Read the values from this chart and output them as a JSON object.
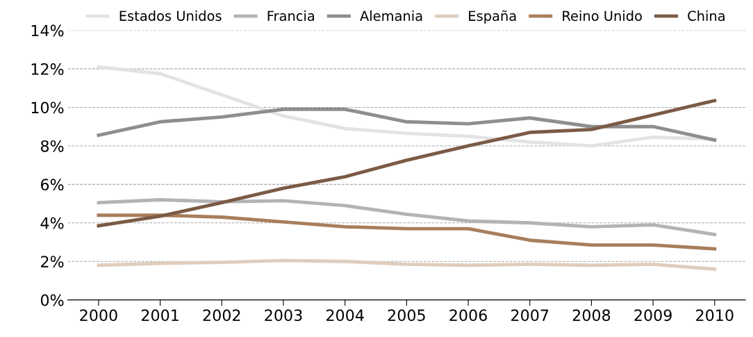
{
  "chart_data": {
    "type": "line",
    "categories": [
      "2000",
      "2001",
      "2002",
      "2003",
      "2004",
      "2005",
      "2006",
      "2007",
      "2008",
      "2009",
      "2010"
    ],
    "series": [
      {
        "name": "Estados Unidos",
        "color": "#e3e3e3",
        "values": [
          12.1,
          11.75,
          10.65,
          9.55,
          8.9,
          8.65,
          8.5,
          8.2,
          8.0,
          8.45,
          8.35
        ]
      },
      {
        "name": "Francia",
        "color": "#b3b3b3",
        "values": [
          5.05,
          5.2,
          5.1,
          5.15,
          4.9,
          4.45,
          4.1,
          4.0,
          3.8,
          3.9,
          3.4
        ]
      },
      {
        "name": "Alemania",
        "color": "#8e8e8e",
        "values": [
          8.55,
          9.25,
          9.5,
          9.9,
          9.9,
          9.25,
          9.15,
          9.45,
          9.0,
          9.0,
          8.3
        ]
      },
      {
        "name": "España",
        "color": "#dfcdbd",
        "values": [
          1.8,
          1.9,
          1.95,
          2.05,
          2.0,
          1.85,
          1.8,
          1.85,
          1.8,
          1.85,
          1.6
        ]
      },
      {
        "name": "Reino Unido",
        "color": "#a87e5c",
        "values": [
          4.4,
          4.4,
          4.3,
          4.05,
          3.8,
          3.7,
          3.7,
          3.1,
          2.85,
          2.85,
          2.65
        ]
      },
      {
        "name": "China",
        "color": "#7b5b46",
        "values": [
          3.85,
          4.35,
          5.05,
          5.8,
          6.4,
          7.25,
          8.0,
          8.7,
          8.85,
          9.6,
          10.35
        ]
      }
    ],
    "ylim": [
      0,
      14
    ],
    "yticks": [
      {
        "value": 0,
        "label": "0%"
      },
      {
        "value": 2,
        "label": "2%"
      },
      {
        "value": 4,
        "label": "4%"
      },
      {
        "value": 6,
        "label": "6%"
      },
      {
        "value": 8,
        "label": "8%"
      },
      {
        "value": 10,
        "label": "10%"
      },
      {
        "value": 12,
        "label": "12%"
      },
      {
        "value": 14,
        "label": "14%"
      }
    ],
    "grid": "y",
    "legend": "top",
    "marker": "none",
    "line_style": "solid"
  }
}
